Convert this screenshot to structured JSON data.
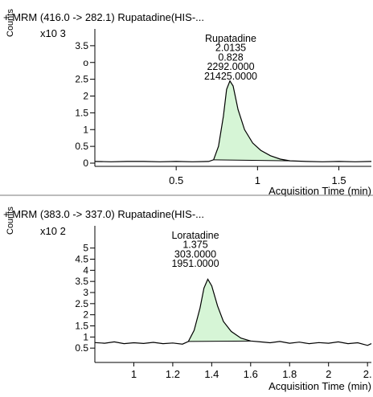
{
  "chart_data": [
    {
      "type": "line",
      "title": "+ MRM (416.0 -> 282.1) Rupatadine(HIS-...",
      "ylabel": "Counts",
      "y_scale_label": "x10 3",
      "xlabel": "Acquisition Time (min)",
      "xlim": [
        0,
        1.7
      ],
      "ylim": [
        0,
        4.0
      ],
      "x_ticks": [
        {
          "v": 0.5,
          "label": "0.5"
        },
        {
          "v": 1,
          "label": "1"
        },
        {
          "v": 1.5,
          "label": "1.5"
        }
      ],
      "y_ticks": [
        {
          "v": 0,
          "label": "0"
        },
        {
          "v": 0.5,
          "label": "0.5"
        },
        {
          "v": 1,
          "label": "1"
        },
        {
          "v": 1.5,
          "label": "1.5"
        },
        {
          "v": 2,
          "label": "2"
        },
        {
          "v": 2.5,
          "label": "2.5"
        },
        {
          "v": 3,
          "label": "o"
        },
        {
          "v": 3.5,
          "label": "3.5"
        }
      ],
      "annotation": [
        "Rupatadine",
        "2.0135",
        "0.828",
        "2292.0000",
        "21425.0000"
      ],
      "series": [
        {
          "values": [
            [
              0.0,
              0.05
            ],
            [
              0.1,
              0.04
            ],
            [
              0.2,
              0.05
            ],
            [
              0.3,
              0.05
            ],
            [
              0.4,
              0.04
            ],
            [
              0.5,
              0.05
            ],
            [
              0.6,
              0.04
            ],
            [
              0.7,
              0.05
            ],
            [
              0.73,
              0.1
            ],
            [
              0.76,
              0.5
            ],
            [
              0.79,
              1.4
            ],
            [
              0.81,
              2.2
            ],
            [
              0.83,
              2.45
            ],
            [
              0.85,
              2.3
            ],
            [
              0.88,
              1.6
            ],
            [
              0.92,
              1.0
            ],
            [
              0.97,
              0.6
            ],
            [
              1.02,
              0.38
            ],
            [
              1.08,
              0.22
            ],
            [
              1.14,
              0.12
            ],
            [
              1.2,
              0.07
            ],
            [
              1.3,
              0.05
            ],
            [
              1.4,
              0.04
            ],
            [
              1.5,
              0.05
            ],
            [
              1.6,
              0.04
            ],
            [
              1.7,
              0.05
            ]
          ]
        }
      ],
      "fill_color": "#d6f5d6",
      "line_color": "#000000"
    },
    {
      "type": "line",
      "title": "+ MRM (383.0 -> 337.0) Rupatadine(HIS-...",
      "ylabel": "Counts",
      "y_scale_label": "x10 2",
      "xlabel": "Acquisition Time (min)",
      "xlim": [
        0.8,
        2.22
      ],
      "ylim": [
        0,
        6.0
      ],
      "x_ticks": [
        {
          "v": 1,
          "label": "1"
        },
        {
          "v": 1.2,
          "label": "1.2"
        },
        {
          "v": 1.4,
          "label": "1.4"
        },
        {
          "v": 1.6,
          "label": "1.6"
        },
        {
          "v": 1.8,
          "label": "1.8"
        },
        {
          "v": 2,
          "label": "2"
        },
        {
          "v": 2.2,
          "label": "2."
        }
      ],
      "y_ticks": [
        {
          "v": 0.5,
          "label": "0.5"
        },
        {
          "v": 1,
          "label": "1"
        },
        {
          "v": 1.5,
          "label": "1.5"
        },
        {
          "v": 2,
          "label": "2"
        },
        {
          "v": 2.5,
          "label": "2.5"
        },
        {
          "v": 3,
          "label": "3"
        },
        {
          "v": 3.5,
          "label": "3.5"
        },
        {
          "v": 4,
          "label": "4"
        },
        {
          "v": 4.5,
          "label": "4.5"
        },
        {
          "v": 5,
          "label": "5"
        }
      ],
      "annotation": [
        "Loratadine",
        "1.375",
        "303.0000",
        "1951.0000"
      ],
      "series": [
        {
          "values": [
            [
              0.8,
              0.75
            ],
            [
              0.85,
              0.72
            ],
            [
              0.9,
              0.78
            ],
            [
              0.95,
              0.7
            ],
            [
              1.0,
              0.74
            ],
            [
              1.05,
              0.71
            ],
            [
              1.1,
              0.76
            ],
            [
              1.15,
              0.7
            ],
            [
              1.2,
              0.73
            ],
            [
              1.25,
              0.68
            ],
            [
              1.28,
              0.8
            ],
            [
              1.31,
              1.3
            ],
            [
              1.34,
              2.3
            ],
            [
              1.36,
              3.2
            ],
            [
              1.38,
              3.6
            ],
            [
              1.4,
              3.3
            ],
            [
              1.43,
              2.4
            ],
            [
              1.46,
              1.7
            ],
            [
              1.5,
              1.25
            ],
            [
              1.55,
              0.95
            ],
            [
              1.6,
              0.82
            ],
            [
              1.65,
              0.78
            ],
            [
              1.7,
              0.74
            ],
            [
              1.75,
              0.8
            ],
            [
              1.8,
              0.72
            ],
            [
              1.85,
              0.77
            ],
            [
              1.9,
              0.7
            ],
            [
              1.95,
              0.75
            ],
            [
              2.0,
              0.72
            ],
            [
              2.05,
              0.78
            ],
            [
              2.1,
              0.7
            ],
            [
              2.15,
              0.74
            ],
            [
              2.2,
              0.62
            ],
            [
              2.22,
              0.7
            ]
          ]
        }
      ],
      "fill_color": "#d6f5d6",
      "line_color": "#000000"
    }
  ]
}
